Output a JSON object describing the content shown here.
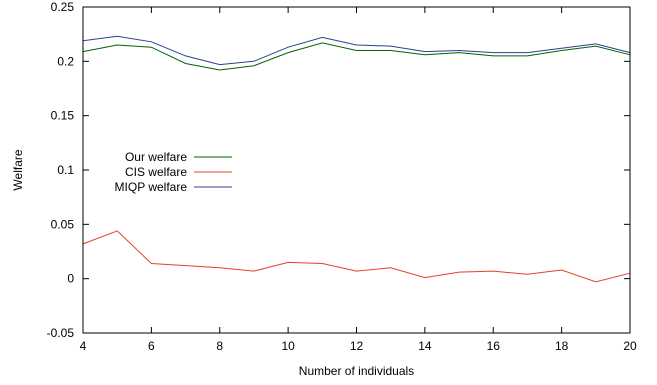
{
  "chart_data": {
    "type": "line",
    "title": "",
    "xlabel": "Number of individuals",
    "ylabel": "Welfare",
    "xlim": [
      4,
      20
    ],
    "ylim": [
      -0.05,
      0.25
    ],
    "xticks": [
      4,
      6,
      8,
      10,
      12,
      14,
      16,
      18,
      20
    ],
    "xtick_labels": [
      "4",
      "6",
      "8",
      "10",
      "12",
      "14",
      "16",
      "18",
      "20"
    ],
    "yticks": [
      -0.05,
      0,
      0.05,
      0.1,
      0.15,
      0.2,
      0.25
    ],
    "ytick_labels": [
      "-0.05",
      "0",
      "0.05",
      "0.1",
      "0.15",
      "0.2",
      "0.25"
    ],
    "grid": false,
    "legend_position": "middle-left",
    "x": [
      4,
      5,
      6,
      7,
      8,
      9,
      10,
      11,
      12,
      13,
      14,
      15,
      16,
      17,
      18,
      19,
      20
    ],
    "series": [
      {
        "name": "Our welfare",
        "color": "#006400",
        "values": [
          0.209,
          0.215,
          0.213,
          0.198,
          0.192,
          0.196,
          0.208,
          0.217,
          0.21,
          0.21,
          0.206,
          0.208,
          0.205,
          0.205,
          0.21,
          0.214,
          0.206
        ]
      },
      {
        "name": "CIS welfare",
        "color": "#e8402a",
        "values": [
          0.032,
          0.044,
          0.014,
          0.012,
          0.01,
          0.007,
          0.015,
          0.014,
          0.007,
          0.01,
          0.001,
          0.006,
          0.007,
          0.004,
          0.008,
          -0.003,
          0.005
        ]
      },
      {
        "name": "MIQP welfare",
        "color": "#2c3f92",
        "values": [
          0.219,
          0.223,
          0.218,
          0.205,
          0.197,
          0.2,
          0.213,
          0.222,
          0.215,
          0.214,
          0.209,
          0.21,
          0.208,
          0.208,
          0.212,
          0.216,
          0.208
        ]
      }
    ]
  }
}
